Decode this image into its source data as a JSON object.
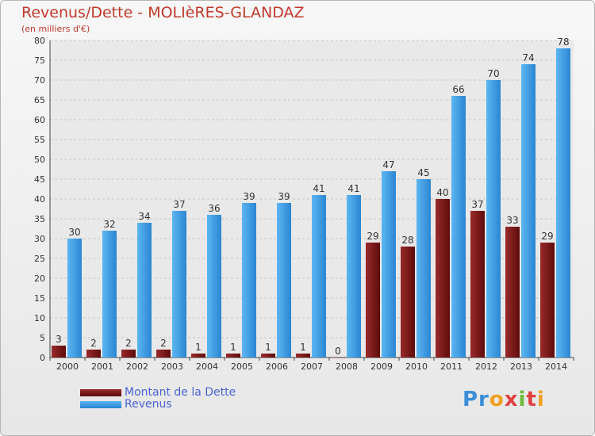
{
  "title": "Revenus/Dette - MOLIèRES-GLANDAZ",
  "subtitle": "(en milliers d'€)",
  "logo_text": "Proxiti",
  "colors": {
    "dette": "#7b1a1a",
    "revenus": "#3a9be6",
    "title": "#c0392b",
    "legend_text": "#4a63d6"
  },
  "chart_data": {
    "type": "bar",
    "categories": [
      "2000",
      "2001",
      "2002",
      "2003",
      "2004",
      "2005",
      "2006",
      "2007",
      "2008",
      "2009",
      "2010",
      "2011",
      "2012",
      "2013",
      "2014"
    ],
    "series": [
      {
        "name": "Montant de la Dette",
        "values": [
          3,
          2,
          2,
          2,
          1,
          1,
          1,
          1,
          0,
          29,
          28,
          40,
          37,
          33,
          29
        ]
      },
      {
        "name": "Revenus",
        "values": [
          30,
          32,
          34,
          37,
          36,
          39,
          39,
          41,
          41,
          47,
          45,
          66,
          70,
          74,
          78
        ]
      }
    ],
    "ylim": [
      0,
      80
    ],
    "ytick_step": 5,
    "grid": true,
    "legend_position": "bottom-left"
  }
}
